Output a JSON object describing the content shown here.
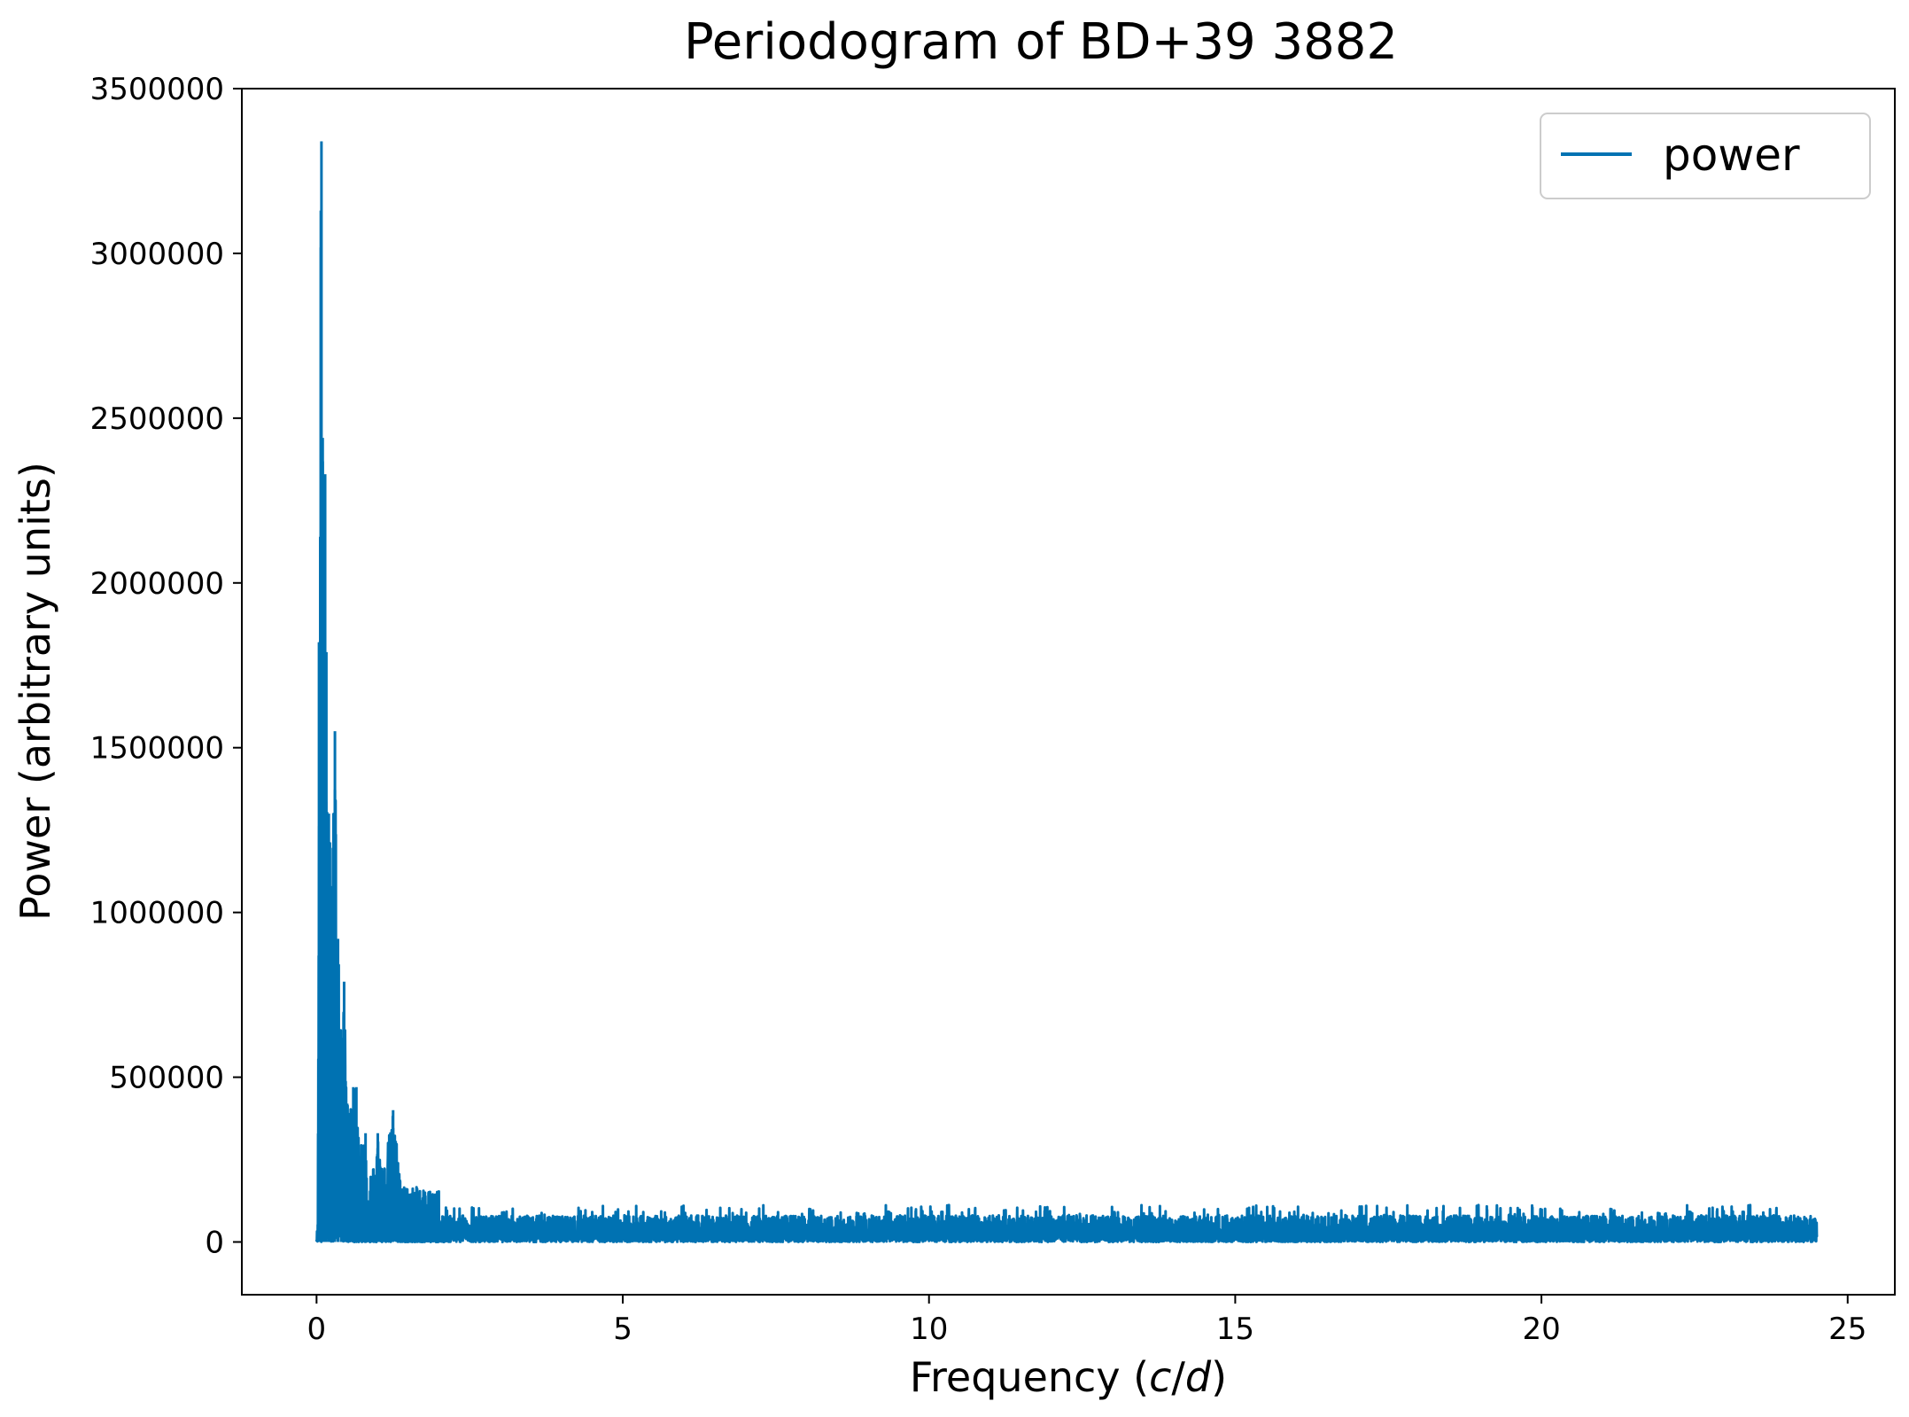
{
  "chart_data": {
    "type": "line",
    "title": "Periodogram of BD+39 3882",
    "xlabel": "Frequency (c/d)",
    "xlabel_parts": {
      "prefix": "Frequency (",
      "var1": "c",
      "sep": "/",
      "var2": "d",
      "suffix": ")"
    },
    "ylabel": "Power (arbitrary units)",
    "xlim": [
      -1.22,
      25.77
    ],
    "ylim": [
      -160000,
      3500000
    ],
    "xticks": [
      0,
      5,
      10,
      15,
      20,
      25
    ],
    "xtick_labels": [
      "0",
      "5",
      "10",
      "15",
      "20",
      "25"
    ],
    "yticks": [
      0,
      500000,
      1000000,
      1500000,
      2000000,
      2500000,
      3000000,
      3500000
    ],
    "ytick_labels": [
      "0",
      "500000",
      "1000000",
      "1500000",
      "2000000",
      "2500000",
      "3000000",
      "3500000"
    ],
    "grid": false,
    "legend": {
      "placement": "top-right",
      "entries": [
        "power"
      ]
    },
    "series": [
      {
        "name": "power",
        "color": "#0072B2",
        "x_range": [
          0.0,
          24.5
        ],
        "description_points": [
          [
            0.0,
            20000
          ],
          [
            0.02,
            60000
          ],
          [
            0.04,
            1820000
          ],
          [
            0.06,
            2140000
          ],
          [
            0.07,
            3130000
          ],
          [
            0.08,
            3340000
          ],
          [
            0.1,
            2440000
          ],
          [
            0.12,
            2150000
          ],
          [
            0.14,
            2330000
          ],
          [
            0.16,
            1790000
          ],
          [
            0.2,
            1300000
          ],
          [
            0.25,
            1080000
          ],
          [
            0.3,
            1550000
          ],
          [
            0.35,
            920000
          ],
          [
            0.4,
            620000
          ],
          [
            0.45,
            790000
          ],
          [
            0.5,
            420000
          ],
          [
            0.6,
            470000
          ],
          [
            0.65,
            470000
          ],
          [
            0.7,
            280000
          ],
          [
            0.8,
            330000
          ],
          [
            0.9,
            200000
          ],
          [
            1.0,
            330000
          ],
          [
            1.1,
            230000
          ],
          [
            1.25,
            400000
          ],
          [
            1.4,
            170000
          ],
          [
            1.75,
            165000
          ],
          [
            2.3,
            140000
          ],
          [
            4.85,
            140000
          ],
          [
            7.9,
            120000
          ],
          [
            15.6,
            130000
          ],
          [
            19.1,
            130000
          ],
          [
            21.9,
            140000
          ],
          [
            24.0,
            110000
          ],
          [
            24.5,
            60000
          ]
        ],
        "noise_floor_max": 80000
      }
    ]
  }
}
